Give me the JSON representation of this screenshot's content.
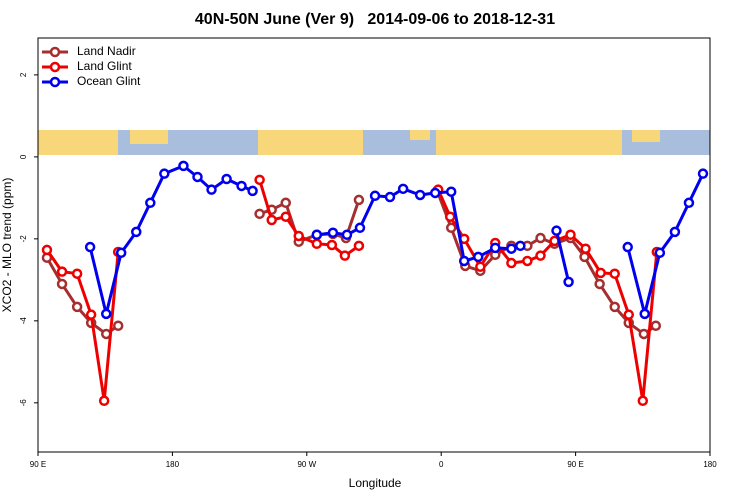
{
  "chart_data": {
    "type": "line",
    "title": "40N-50N June (Ver 9)   2014-09-06 to 2018-12-31",
    "xlabel": "Longitude",
    "ylabel": "XCO2 - MLO trend (ppm)",
    "xlim": [
      90,
      540
    ],
    "ylim": [
      -7.2,
      2.9
    ],
    "xticks": [
      {
        "value": 90,
        "label": "90 E"
      },
      {
        "value": 180,
        "label": "180"
      },
      {
        "value": 270,
        "label": "90 W"
      },
      {
        "value": 360,
        "label": "0"
      },
      {
        "value": 450,
        "label": "90 E"
      },
      {
        "value": 540,
        "label": "180"
      }
    ],
    "yticks": [
      2,
      0,
      -2,
      -4,
      -6
    ],
    "legend": "top-left",
    "series": [
      {
        "name": "Land Nadir",
        "color": "#a52f2f",
        "x": [
          96.0,
          106.1,
          116.2,
          125.6,
          135.7,
          143.7,
          null,
          238.4,
          246.5,
          255.9,
          264.6,
          276.7,
          287.5,
          296.2,
          304.9,
          null,
          357.3,
          366.7,
          376.1,
          386.2,
          396.2,
          407.0,
          417.7,
          426.5,
          435.9,
          446.6,
          456.0,
          466.1,
          476.2,
          485.6,
          495.7,
          503.7
        ],
        "values": [
          -2.46,
          -3.1,
          -3.66,
          -4.05,
          -4.32,
          -4.12,
          null,
          -1.39,
          -1.29,
          -1.12,
          -2.07,
          -1.9,
          -1.88,
          -1.98,
          -1.05,
          null,
          -0.83,
          -1.73,
          -2.66,
          -2.78,
          -2.39,
          -2.17,
          -2.17,
          -1.98,
          -2.12,
          -1.98,
          -2.44,
          -3.1,
          -3.66,
          -4.05,
          -4.32,
          -4.12
        ]
      },
      {
        "name": "Land Glint",
        "color": "#ee0000",
        "x": [
          96.0,
          106.1,
          116.2,
          125.6,
          134.3,
          143.7,
          null,
          238.4,
          246.5,
          255.9,
          264.6,
          276.7,
          286.8,
          295.5,
          304.9,
          null,
          358.0,
          366.0,
          375.4,
          386.2,
          396.2,
          407.0,
          417.7,
          426.5,
          435.9,
          446.6,
          456.7,
          466.8,
          476.2,
          485.6,
          495.0,
          504.4
        ],
        "values": [
          -2.27,
          -2.8,
          -2.85,
          -3.85,
          -5.95,
          -2.32,
          null,
          -0.56,
          -1.54,
          -1.46,
          -1.93,
          -2.12,
          -2.15,
          -2.41,
          -2.17,
          null,
          -0.8,
          -1.46,
          -2.0,
          -2.68,
          -2.1,
          -2.59,
          -2.54,
          -2.41,
          -2.05,
          -1.9,
          -2.24,
          -2.83,
          -2.85,
          -3.85,
          -5.95,
          -2.32
        ]
      },
      {
        "name": "Ocean Glint",
        "color": "#0000ee",
        "x": [
          124.9,
          135.7,
          145.7,
          155.8,
          165.2,
          174.6,
          187.4,
          196.8,
          206.2,
          216.3,
          226.3,
          233.7,
          null,
          276.7,
          287.5,
          296.9,
          305.6,
          315.7,
          325.7,
          334.5,
          345.9,
          356.0,
          366.7,
          375.4,
          384.8,
          396.2,
          407.0,
          413.0,
          null,
          437.2,
          445.3,
          null,
          484.9,
          496.3,
          506.4,
          516.5,
          525.9,
          535.3
        ],
        "values": [
          -2.2,
          -3.83,
          -2.34,
          -1.83,
          -1.12,
          -0.41,
          -0.22,
          -0.49,
          -0.8,
          -0.54,
          -0.71,
          -0.83,
          null,
          -1.9,
          -1.85,
          -1.9,
          -1.73,
          -0.95,
          -0.98,
          -0.78,
          -0.93,
          -0.88,
          -0.85,
          -2.54,
          -2.44,
          -2.22,
          -2.24,
          -2.17,
          null,
          -1.8,
          -3.05,
          null,
          -2.2,
          -3.83,
          -2.34,
          -1.83,
          -1.12,
          -0.41
        ]
      }
    ]
  }
}
